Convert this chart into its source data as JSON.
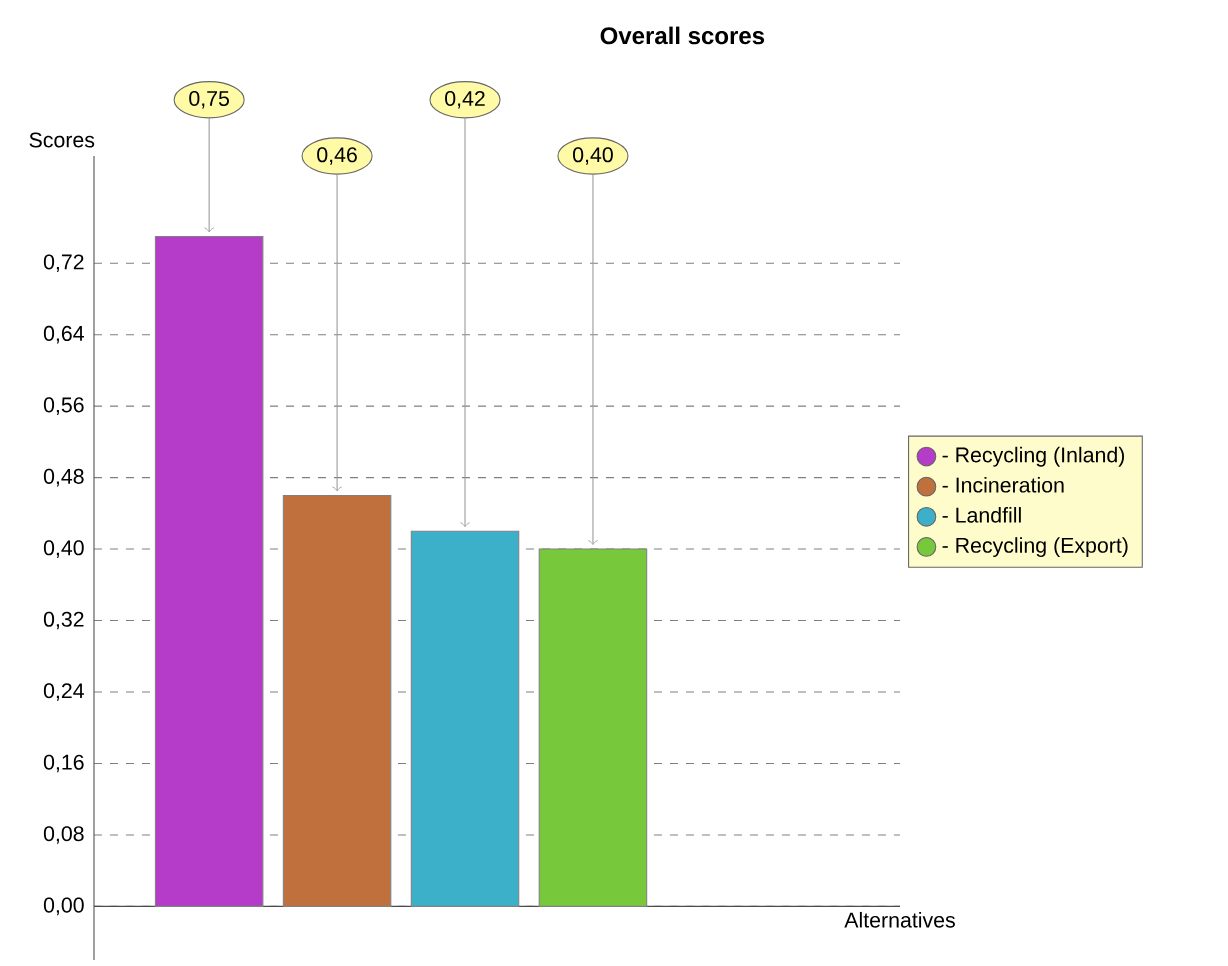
{
  "chart_data": {
    "type": "bar",
    "title": "Overall scores",
    "xlabel": "Alternatives",
    "ylabel": "Scores",
    "categories": [
      null,
      null,
      null,
      null,
      null,
      null
    ],
    "series": [
      {
        "name": "- Recycling (Inland)",
        "color": "#b43cc8",
        "values": [
          0.75,
          null,
          null,
          null,
          null,
          null
        ],
        "value_labels": [
          "0,75",
          null,
          null,
          null,
          null,
          null
        ]
      },
      {
        "name": "- Incineration",
        "color": "#c0703c",
        "values": [
          null,
          0.46,
          null,
          null,
          null,
          null
        ],
        "value_labels": [
          null,
          "0,46",
          null,
          null,
          null,
          null
        ]
      },
      {
        "name": "- Landfill",
        "color": "#3cb0c8",
        "values": [
          null,
          null,
          0.42,
          null,
          null,
          null
        ],
        "value_labels": [
          null,
          null,
          "0,42",
          null,
          null,
          null
        ]
      },
      {
        "name": "- Recycling (Export)",
        "color": "#78c83c",
        "values": [
          null,
          null,
          null,
          0.4,
          null,
          null
        ],
        "value_labels": [
          null,
          null,
          null,
          "0,40",
          null,
          null
        ]
      }
    ],
    "ylim": [
      -0.06,
      0.84
    ],
    "yticks": [
      {
        "value": 0,
        "label": "0,00"
      },
      {
        "value": 0.08,
        "label": "0,08"
      },
      {
        "value": 0.16,
        "label": "0,16"
      },
      {
        "value": 0.24,
        "label": "0,24"
      },
      {
        "value": 0.32,
        "label": "0,32"
      },
      {
        "value": 0.4,
        "label": "0,40"
      },
      {
        "value": 0.48,
        "label": "0,48"
      },
      {
        "value": 0.56,
        "label": "0,56"
      },
      {
        "value": 0.64,
        "label": "0,64"
      },
      {
        "value": 0.72,
        "label": "0,72"
      }
    ],
    "grid": "y",
    "legend": "right",
    "tick_labels": "y"
  }
}
